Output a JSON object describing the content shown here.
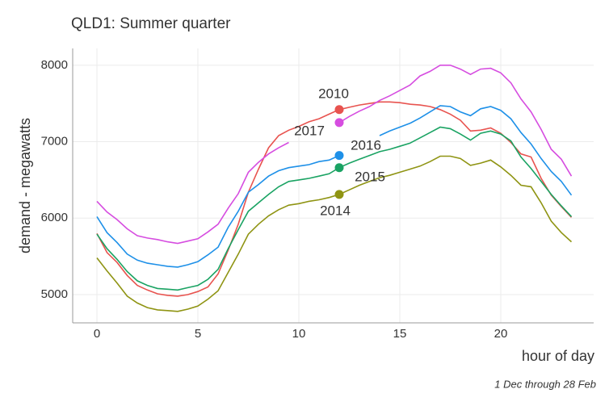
{
  "chart_data": {
    "type": "line",
    "title": "QLD1: Summer quarter",
    "x_label": "hour of day",
    "y_label": "demand - megawatts",
    "caption": "1 Dec through 28 Feb",
    "x": [
      0,
      0.5,
      1,
      1.5,
      2,
      2.5,
      3,
      3.5,
      4,
      4.5,
      5,
      5.5,
      6,
      6.5,
      7,
      7.5,
      8,
      8.5,
      9,
      9.5,
      10,
      10.5,
      11,
      11.5,
      12,
      12.5,
      13,
      13.5,
      14,
      14.5,
      15,
      15.5,
      16,
      16.5,
      17,
      17.5,
      18,
      18.5,
      19,
      19.5,
      20,
      20.5,
      21,
      21.5,
      22,
      22.5,
      23,
      23.5
    ],
    "series": [
      {
        "name": "2010",
        "color": "#e8534f",
        "values": [
          5800,
          5550,
          5420,
          5250,
          5120,
          5060,
          5010,
          4990,
          4980,
          5000,
          5040,
          5100,
          5270,
          5580,
          5920,
          6340,
          6640,
          6920,
          7080,
          7150,
          7200,
          7260,
          7300,
          7360,
          7420,
          7450,
          7480,
          7500,
          7520,
          7520,
          7510,
          7490,
          7480,
          7460,
          7420,
          7360,
          7280,
          7140,
          7150,
          7180,
          7110,
          6990,
          6840,
          6800,
          6520,
          6300,
          6150,
          6010
        ]
      },
      {
        "name": "2017",
        "color": "#d64de0",
        "values": [
          6220,
          6080,
          5980,
          5860,
          5770,
          5740,
          5720,
          5690,
          5670,
          5700,
          5730,
          5820,
          5920,
          6130,
          6320,
          6600,
          6730,
          6840,
          6920,
          6990,
          null,
          null,
          null,
          null,
          7250,
          7330,
          7400,
          7460,
          7540,
          7600,
          7670,
          7740,
          7860,
          7920,
          8000,
          8000,
          7950,
          7880,
          7950,
          7960,
          7900,
          7770,
          7560,
          7390,
          7160,
          6900,
          6770,
          6550
        ]
      },
      {
        "name": "2016",
        "color": "#1e90e8",
        "values": [
          6020,
          5810,
          5680,
          5530,
          5450,
          5410,
          5390,
          5370,
          5360,
          5390,
          5430,
          5520,
          5620,
          5880,
          6090,
          6340,
          6440,
          6550,
          6620,
          6660,
          6680,
          6700,
          6740,
          6760,
          6820,
          null,
          null,
          null,
          7080,
          7140,
          7190,
          7240,
          7310,
          7390,
          7470,
          7460,
          7390,
          7340,
          7430,
          7460,
          7410,
          7300,
          7120,
          6970,
          6780,
          6610,
          6480,
          6300
        ]
      },
      {
        "name": "2015",
        "color": "#1aa363",
        "values": [
          5790,
          5600,
          5460,
          5300,
          5180,
          5120,
          5080,
          5070,
          5060,
          5090,
          5120,
          5200,
          5330,
          5600,
          5850,
          6090,
          6200,
          6310,
          6410,
          6480,
          6500,
          6520,
          6550,
          6580,
          6660,
          6720,
          6770,
          6820,
          6870,
          6900,
          6940,
          6980,
          7050,
          7120,
          7190,
          7170,
          7100,
          7020,
          7110,
          7140,
          7100,
          7010,
          6800,
          6650,
          6480,
          6310,
          6160,
          6020
        ]
      },
      {
        "name": "2014",
        "color": "#8f9413",
        "values": [
          5480,
          5310,
          5150,
          4980,
          4890,
          4830,
          4800,
          4790,
          4780,
          4810,
          4850,
          4940,
          5050,
          5290,
          5530,
          5790,
          5920,
          6030,
          6110,
          6170,
          6190,
          6220,
          6240,
          6270,
          6310,
          6370,
          6430,
          6480,
          6530,
          6560,
          6600,
          6640,
          6680,
          6740,
          6810,
          6810,
          6780,
          6690,
          6720,
          6760,
          6670,
          6560,
          6430,
          6410,
          6200,
          5960,
          5810,
          5690
        ]
      }
    ],
    "xlim": [
      -1.2,
      24.6
    ],
    "ylim": [
      4630,
      8220
    ],
    "xticks": [
      0,
      5,
      10,
      15,
      20
    ],
    "yticks": [
      5000,
      6000,
      7000,
      8000
    ],
    "grid": true
  }
}
